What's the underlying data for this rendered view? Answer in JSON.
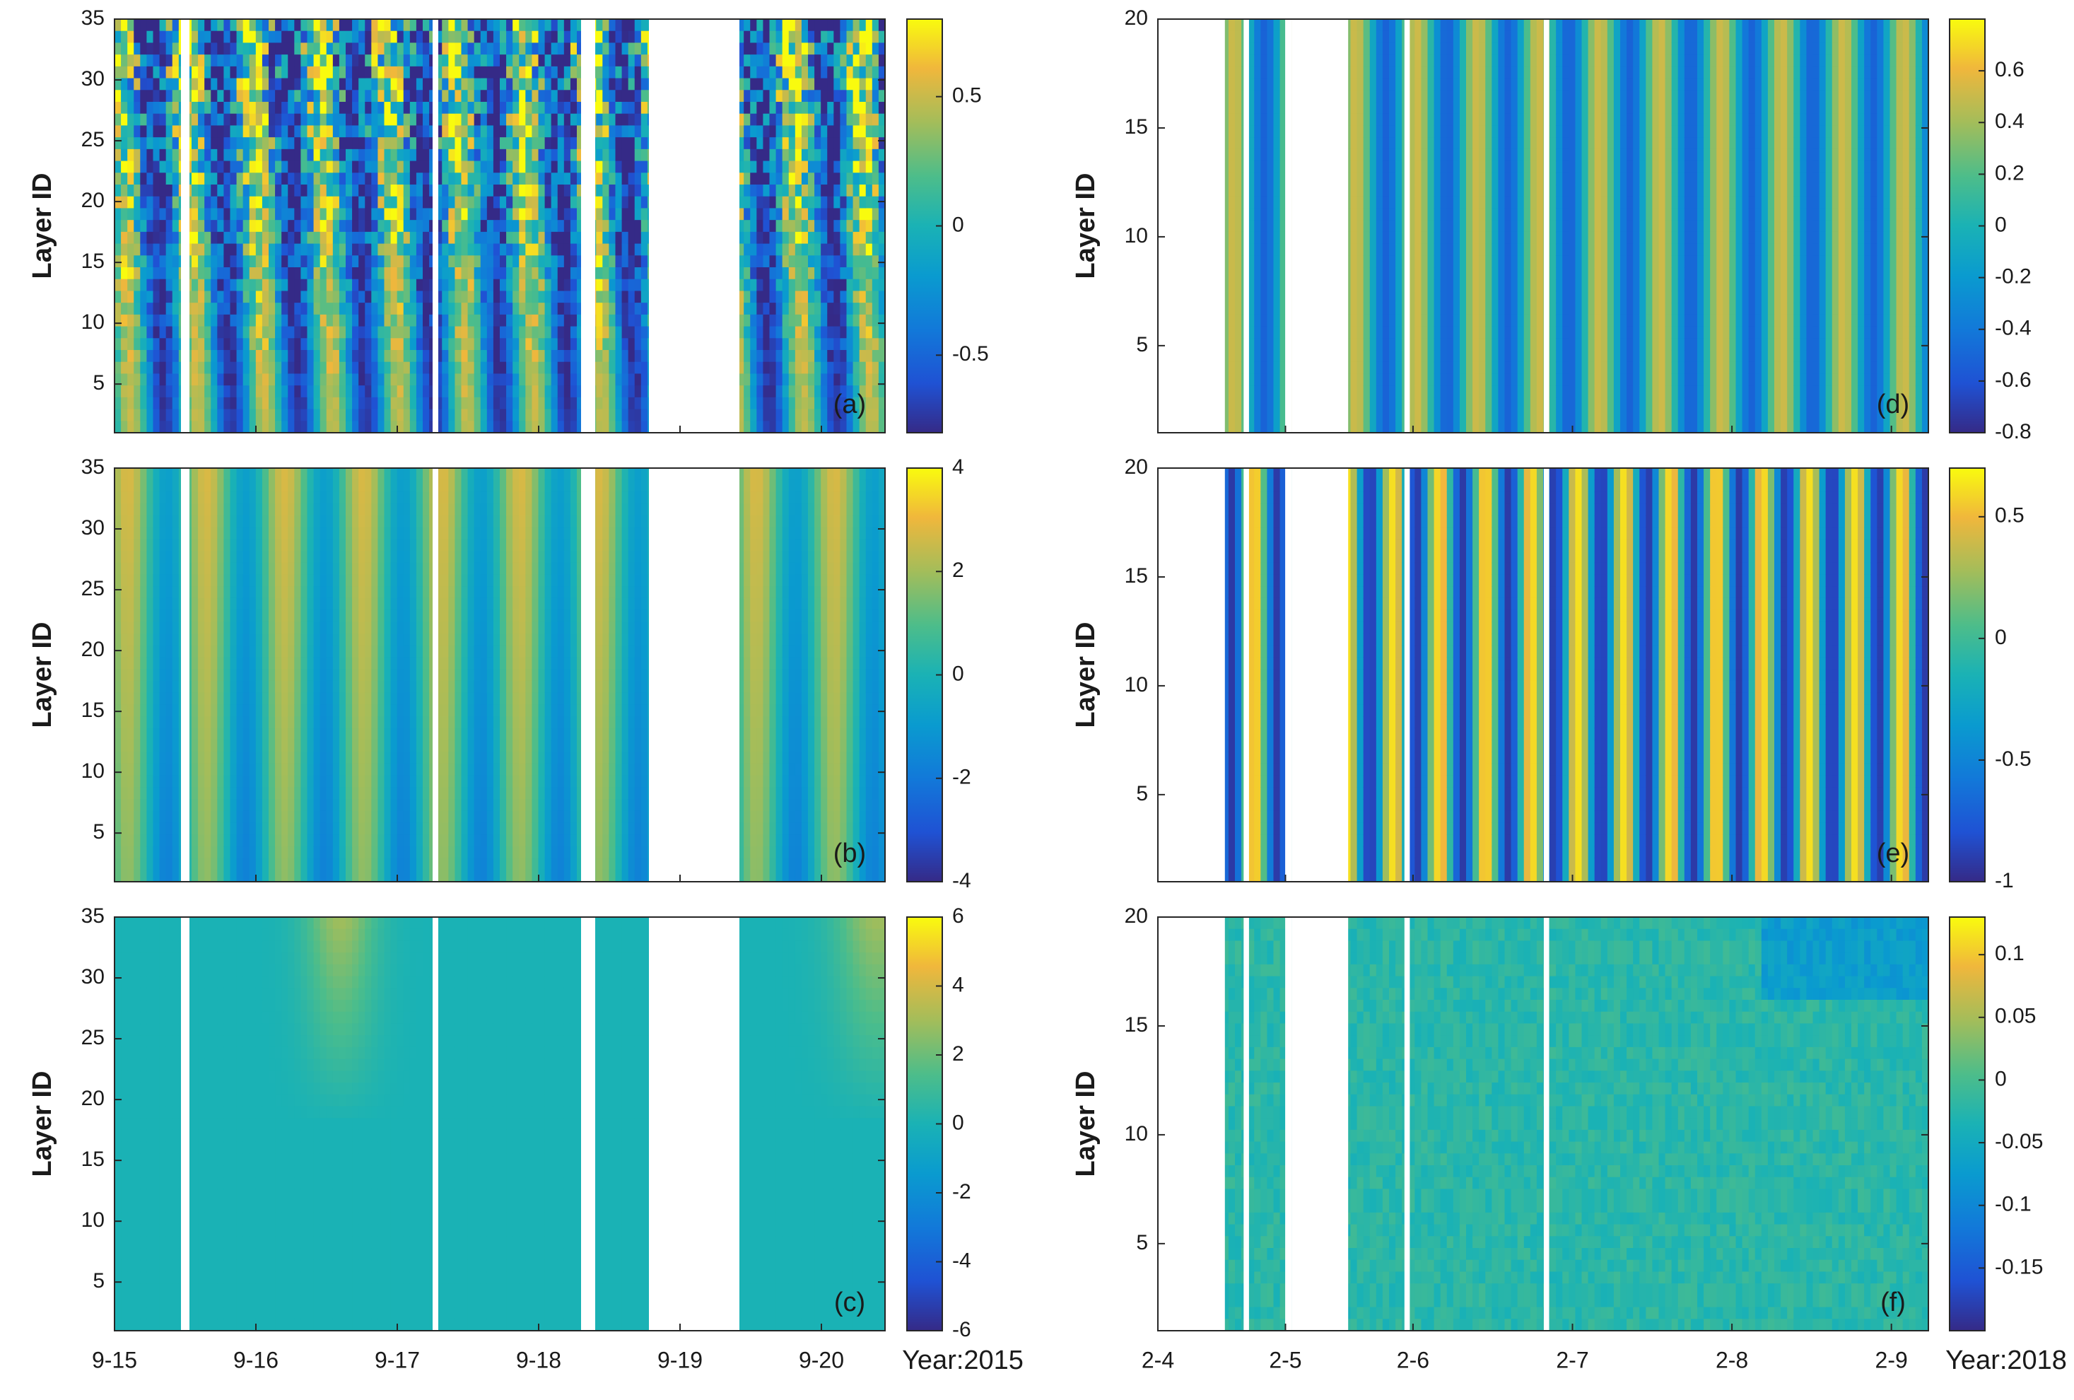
{
  "chart_data": [
    {
      "id": "a",
      "type": "heatmap",
      "panel_label": "(a)",
      "ylabel": "Layer ID",
      "ylim": [
        1,
        35
      ],
      "yticks": [
        "5",
        "10",
        "15",
        "20",
        "25",
        "30",
        "35"
      ],
      "xticks": [
        "9-15",
        "9-16",
        "9-17",
        "9-18",
        "9-19",
        "9-20"
      ],
      "colorbar": {
        "range": [
          -0.8,
          0.8
        ],
        "ticks": [
          "-0.5",
          "0",
          "0.5"
        ]
      },
      "gaps": [
        [
          0.47,
          0.53
        ],
        [
          2.25,
          2.29
        ],
        [
          3.3,
          3.4
        ],
        [
          3.78,
          4.1
        ],
        [
          4.1,
          4.42
        ]
      ]
    },
    {
      "id": "b",
      "type": "heatmap",
      "panel_label": "(b)",
      "ylabel": "Layer ID",
      "ylim": [
        1,
        35
      ],
      "yticks": [
        "5",
        "10",
        "15",
        "20",
        "25",
        "30",
        "35"
      ],
      "xticks": [
        "9-15",
        "9-16",
        "9-17",
        "9-18",
        "9-19",
        "9-20"
      ],
      "colorbar": {
        "range": [
          -4,
          4
        ],
        "ticks": [
          "-4",
          "-2",
          "0",
          "2",
          "4"
        ]
      },
      "gaps": [
        [
          0.47,
          0.53
        ],
        [
          2.25,
          2.29
        ],
        [
          3.3,
          3.4
        ],
        [
          3.78,
          4.1
        ],
        [
          4.1,
          4.42
        ]
      ]
    },
    {
      "id": "c",
      "type": "heatmap",
      "panel_label": "(c)",
      "ylabel": "Layer ID",
      "ylim": [
        1,
        35
      ],
      "yticks": [
        "5",
        "10",
        "15",
        "20",
        "25",
        "30",
        "35"
      ],
      "xticks": [
        "9-15",
        "9-16",
        "9-17",
        "9-18",
        "9-19",
        "9-20"
      ],
      "colorbar": {
        "range": [
          -6,
          6
        ],
        "ticks": [
          "-6",
          "-4",
          "-2",
          "0",
          "2",
          "4",
          "6"
        ]
      },
      "year_label": "Year:2015",
      "gaps": [
        [
          0.47,
          0.53
        ],
        [
          2.25,
          2.29
        ],
        [
          3.3,
          3.4
        ],
        [
          3.78,
          4.1
        ],
        [
          4.1,
          4.42
        ]
      ]
    },
    {
      "id": "d",
      "type": "heatmap",
      "panel_label": "(d)",
      "ylabel": "Layer ID",
      "ylim": [
        1,
        20
      ],
      "yticks": [
        "5",
        "10",
        "15",
        "20"
      ],
      "xticks": [
        "2-4",
        "2-5",
        "2-6",
        "2-7",
        "2-8",
        "2-9"
      ],
      "colorbar": {
        "range": [
          -0.8,
          0.8
        ],
        "ticks": [
          "-0.8",
          "-0.6",
          "-0.4",
          "-0.2",
          "0",
          "0.2",
          "0.4",
          "0.6"
        ]
      },
      "gaps": [
        [
          0,
          0.5
        ],
        [
          0.64,
          0.68
        ],
        [
          0.95,
          1.0
        ],
        [
          1.0,
          1.42
        ],
        [
          1.84,
          1.88
        ],
        [
          2.88,
          2.92
        ]
      ]
    },
    {
      "id": "e",
      "type": "heatmap",
      "panel_label": "(e)",
      "ylabel": "Layer ID",
      "ylim": [
        1,
        20
      ],
      "yticks": [
        "5",
        "10",
        "15",
        "20"
      ],
      "xticks": [
        "2-4",
        "2-5",
        "2-6",
        "2-7",
        "2-8",
        "2-9"
      ],
      "colorbar": {
        "range": [
          -1,
          0.7
        ],
        "ticks": [
          "-1",
          "-0.5",
          "0",
          "0.5"
        ]
      },
      "gaps": [
        [
          0,
          0.5
        ],
        [
          0.64,
          0.68
        ],
        [
          0.95,
          1.0
        ],
        [
          1.0,
          1.42
        ],
        [
          1.84,
          1.88
        ],
        [
          2.88,
          2.92
        ]
      ]
    },
    {
      "id": "f",
      "type": "heatmap",
      "panel_label": "(f)",
      "ylabel": "Layer ID",
      "ylim": [
        1,
        20
      ],
      "yticks": [
        "5",
        "10",
        "15",
        "20"
      ],
      "xticks": [
        "2-4",
        "2-5",
        "2-6",
        "2-7",
        "2-8",
        "2-9"
      ],
      "colorbar": {
        "range": [
          -0.2,
          0.13
        ],
        "ticks": [
          "-0.15",
          "-0.1",
          "-0.05",
          "0",
          "0.05",
          "0.1"
        ]
      },
      "year_label": "Year:2018",
      "gaps": [
        [
          0,
          0.5
        ],
        [
          0.64,
          0.68
        ],
        [
          0.95,
          1.0
        ],
        [
          1.0,
          1.42
        ],
        [
          1.84,
          1.88
        ],
        [
          2.88,
          2.92
        ]
      ]
    }
  ]
}
